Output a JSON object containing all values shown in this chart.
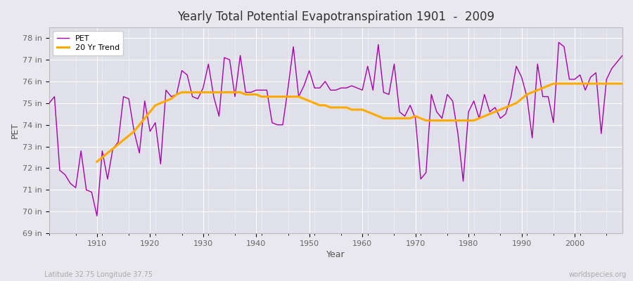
{
  "title": "Yearly Total Potential Evapotranspiration 1901  -  2009",
  "xlabel": "Year",
  "ylabel": "PET",
  "subtitle": "Latitude 32.75 Longitude 37.75",
  "watermark": "worldspecies.org",
  "pet_color": "#aa00aa",
  "trend_color": "#ffaa00",
  "fig_bg_color": "#e8e8ee",
  "plot_bg_color": "#e0e0ea",
  "grid_color": "#ffffff",
  "ylim": [
    69,
    78.5
  ],
  "yticks": [
    69,
    70,
    71,
    72,
    73,
    74,
    75,
    76,
    77,
    78
  ],
  "ytick_labels": [
    "69 in",
    "70 in",
    "71 in",
    "72 in",
    "73 in",
    "74 in",
    "75 in",
    "76 in",
    "77 in",
    "78 in"
  ],
  "years": [
    1901,
    1902,
    1903,
    1904,
    1905,
    1906,
    1907,
    1908,
    1909,
    1910,
    1911,
    1912,
    1913,
    1914,
    1915,
    1916,
    1917,
    1918,
    1919,
    1920,
    1921,
    1922,
    1923,
    1924,
    1925,
    1926,
    1927,
    1928,
    1929,
    1930,
    1931,
    1932,
    1933,
    1934,
    1935,
    1936,
    1937,
    1938,
    1939,
    1940,
    1941,
    1942,
    1943,
    1944,
    1945,
    1946,
    1947,
    1948,
    1949,
    1950,
    1951,
    1952,
    1953,
    1954,
    1955,
    1956,
    1957,
    1958,
    1959,
    1960,
    1961,
    1962,
    1963,
    1964,
    1965,
    1966,
    1967,
    1968,
    1969,
    1970,
    1971,
    1972,
    1973,
    1974,
    1975,
    1976,
    1977,
    1978,
    1979,
    1980,
    1981,
    1982,
    1983,
    1984,
    1985,
    1986,
    1987,
    1988,
    1989,
    1990,
    1991,
    1992,
    1993,
    1994,
    1995,
    1996,
    1997,
    1998,
    1999,
    2000,
    2001,
    2002,
    2003,
    2004,
    2005,
    2006,
    2007,
    2008,
    2009
  ],
  "pet_values": [
    75.0,
    75.3,
    71.9,
    71.7,
    71.3,
    71.1,
    72.8,
    71.0,
    70.9,
    69.8,
    72.8,
    71.5,
    72.9,
    73.2,
    75.3,
    75.2,
    73.7,
    72.7,
    75.1,
    73.7,
    74.1,
    72.2,
    75.6,
    75.3,
    75.4,
    76.5,
    76.3,
    75.3,
    75.2,
    75.7,
    76.8,
    75.3,
    74.4,
    77.1,
    77.0,
    75.3,
    77.2,
    75.5,
    75.5,
    75.6,
    75.6,
    75.6,
    74.1,
    74.0,
    74.0,
    75.7,
    77.6,
    75.3,
    75.8,
    76.5,
    75.7,
    75.7,
    76.0,
    75.6,
    75.6,
    75.7,
    75.7,
    75.8,
    75.7,
    75.6,
    76.7,
    75.6,
    77.7,
    75.5,
    75.4,
    76.8,
    74.6,
    74.4,
    74.9,
    74.3,
    71.5,
    71.8,
    75.4,
    74.6,
    74.3,
    75.4,
    75.1,
    73.6,
    71.4,
    74.6,
    75.1,
    74.3,
    75.4,
    74.6,
    74.8,
    74.3,
    74.5,
    75.3,
    76.7,
    76.2,
    75.3,
    73.4,
    76.8,
    75.3,
    75.3,
    74.1,
    77.8,
    77.6,
    76.1,
    76.1,
    76.3,
    75.6,
    76.2,
    76.4,
    73.6,
    76.1,
    76.6,
    76.9,
    77.2
  ],
  "trend_years": [
    1910,
    1911,
    1912,
    1913,
    1914,
    1915,
    1916,
    1917,
    1918,
    1919,
    1920,
    1921,
    1922,
    1923,
    1924,
    1925,
    1926,
    1927,
    1928,
    1929,
    1930,
    1931,
    1932,
    1933,
    1934,
    1935,
    1936,
    1937,
    1938,
    1939,
    1940,
    1941,
    1942,
    1943,
    1944,
    1945,
    1946,
    1947,
    1948,
    1949,
    1950,
    1951,
    1952,
    1953,
    1954,
    1955,
    1956,
    1957,
    1958,
    1959,
    1960,
    1961,
    1962,
    1963,
    1964,
    1965,
    1966,
    1967,
    1968,
    1969,
    1970,
    1971,
    1972,
    1973,
    1974,
    1975,
    1976,
    1977,
    1978,
    1979,
    1980,
    1981,
    1982,
    1983,
    1984,
    1985,
    1986,
    1987,
    1988,
    1989,
    1990,
    1991,
    1992,
    1993,
    1994,
    1995,
    1996,
    1997,
    1998,
    1999,
    2000,
    2001,
    2002,
    2003,
    2004,
    2005,
    2006,
    2007,
    2008,
    2009
  ],
  "trend_values": [
    72.3,
    72.5,
    72.7,
    72.9,
    73.1,
    73.3,
    73.5,
    73.7,
    74.0,
    74.3,
    74.6,
    74.9,
    75.0,
    75.1,
    75.2,
    75.4,
    75.5,
    75.5,
    75.5,
    75.5,
    75.5,
    75.5,
    75.5,
    75.5,
    75.5,
    75.5,
    75.5,
    75.5,
    75.4,
    75.4,
    75.4,
    75.3,
    75.3,
    75.3,
    75.3,
    75.3,
    75.3,
    75.3,
    75.3,
    75.2,
    75.1,
    75.0,
    74.9,
    74.9,
    74.8,
    74.8,
    74.8,
    74.8,
    74.7,
    74.7,
    74.7,
    74.6,
    74.5,
    74.4,
    74.3,
    74.3,
    74.3,
    74.3,
    74.3,
    74.3,
    74.4,
    74.3,
    74.2,
    74.2,
    74.2,
    74.2,
    74.2,
    74.2,
    74.2,
    74.2,
    74.2,
    74.2,
    74.3,
    74.4,
    74.5,
    74.6,
    74.7,
    74.8,
    74.9,
    75.0,
    75.2,
    75.4,
    75.5,
    75.6,
    75.7,
    75.8,
    75.9,
    75.9,
    75.9,
    75.9,
    75.9,
    75.9,
    75.9,
    75.9,
    75.9,
    75.9,
    75.9,
    75.9,
    75.9,
    75.9
  ]
}
